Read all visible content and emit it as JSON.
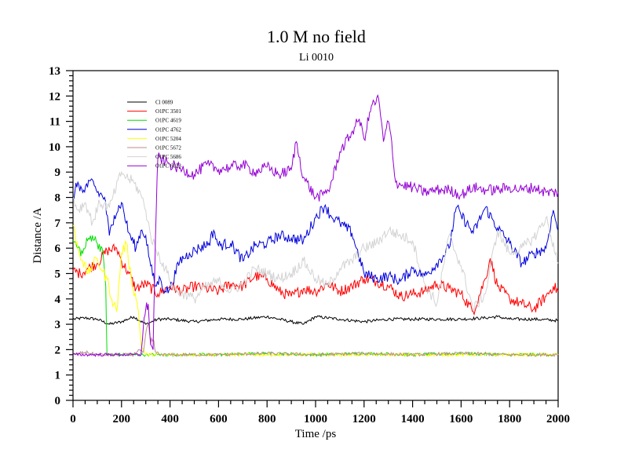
{
  "chart_data": {
    "type": "line",
    "title": "1.0 M no field",
    "subtitle": "Li 0010",
    "xlabel": "Time /ps",
    "ylabel": "Distance /A",
    "xlim": [
      0,
      2000
    ],
    "ylim": [
      0,
      13
    ],
    "xticks": [
      "0",
      "200",
      "400",
      "600",
      "800",
      "1000",
      "1200",
      "1400",
      "1600",
      "1800",
      "2000"
    ],
    "yticks": [
      "0",
      "1",
      "2",
      "3",
      "4",
      "5",
      "6",
      "7",
      "8",
      "9",
      "10",
      "11",
      "12",
      "13"
    ],
    "grid": false,
    "legend_position": "top-left",
    "series": [
      {
        "name": "Cl 0089",
        "color": "#000000",
        "x": [
          0,
          50,
          100,
          150,
          200,
          250,
          300,
          350,
          400,
          500,
          600,
          700,
          800,
          900,
          950,
          1000,
          1100,
          1200,
          1300,
          1400,
          1500,
          1600,
          1700,
          1750,
          1800,
          1900,
          2000
        ],
        "y": [
          3.2,
          3.25,
          3.2,
          3.0,
          3.1,
          3.3,
          3.0,
          3.2,
          3.2,
          3.1,
          3.2,
          3.2,
          3.3,
          3.1,
          3.0,
          3.3,
          3.2,
          3.1,
          3.2,
          3.2,
          3.2,
          3.2,
          3.25,
          3.3,
          3.2,
          3.2,
          3.15
        ]
      },
      {
        "name": "O1PC 3501",
        "color": "#ff0000",
        "x": [
          0,
          30,
          60,
          100,
          140,
          180,
          200,
          230,
          260,
          300,
          350,
          400,
          450,
          500,
          550,
          600,
          650,
          700,
          750,
          800,
          850,
          900,
          950,
          1000,
          1050,
          1100,
          1150,
          1200,
          1250,
          1300,
          1350,
          1400,
          1450,
          1500,
          1550,
          1600,
          1650,
          1700,
          1720,
          1750,
          1800,
          1850,
          1900,
          1950,
          1980,
          2000
        ],
        "y": [
          5.1,
          5.0,
          5.2,
          5.4,
          5.9,
          6.0,
          5.5,
          5.0,
          4.4,
          4.6,
          4.2,
          4.5,
          4.3,
          4.5,
          4.4,
          4.3,
          4.6,
          4.5,
          4.9,
          4.8,
          4.3,
          4.1,
          4.4,
          4.3,
          4.6,
          4.3,
          4.5,
          4.8,
          4.7,
          4.5,
          4.1,
          4.2,
          4.3,
          4.6,
          4.4,
          4.2,
          3.5,
          4.8,
          5.6,
          4.5,
          4.0,
          3.8,
          3.6,
          4.1,
          4.5,
          4.3
        ]
      },
      {
        "name": "O1PC 4619",
        "color": "#00dd00",
        "x": [
          0,
          20,
          40,
          60,
          80,
          100,
          120,
          135,
          140,
          150,
          200,
          300,
          400,
          600,
          800,
          1000,
          1200,
          1400,
          1600,
          1800,
          2000
        ],
        "y": [
          6.3,
          6.0,
          5.8,
          6.3,
          6.5,
          6.2,
          6.0,
          4.5,
          1.8,
          1.8,
          1.8,
          1.8,
          1.8,
          1.8,
          1.85,
          1.8,
          1.85,
          1.8,
          1.85,
          1.8,
          1.8
        ]
      },
      {
        "name": "O1PC 4762",
        "color": "#0000dd",
        "x": [
          0,
          20,
          40,
          60,
          80,
          100,
          130,
          150,
          170,
          200,
          230,
          260,
          280,
          300,
          320,
          340,
          360,
          380,
          400,
          440,
          480,
          520,
          560,
          580,
          600,
          650,
          700,
          750,
          800,
          850,
          900,
          950,
          1000,
          1040,
          1060,
          1100,
          1150,
          1200,
          1250,
          1300,
          1350,
          1400,
          1450,
          1500,
          1550,
          1580,
          1600,
          1650,
          1700,
          1750,
          1800,
          1850,
          1900,
          1950,
          1980,
          2000
        ],
        "y": [
          8.0,
          8.6,
          8.2,
          8.4,
          8.7,
          8.2,
          8.0,
          6.5,
          7.3,
          7.8,
          6.6,
          6.0,
          6.7,
          6.5,
          5.3,
          4.5,
          4.8,
          4.3,
          4.4,
          5.5,
          5.8,
          6.0,
          6.2,
          6.7,
          6.1,
          6.2,
          5.5,
          6.1,
          6.2,
          6.5,
          6.4,
          6.3,
          7.2,
          7.7,
          7.3,
          7.0,
          6.6,
          5.0,
          4.8,
          4.9,
          4.7,
          5.2,
          4.9,
          5.4,
          6.0,
          7.6,
          7.3,
          6.6,
          7.6,
          6.8,
          6.2,
          5.4,
          5.8,
          6.0,
          7.5,
          6.7
        ]
      },
      {
        "name": "O1PC 5204",
        "color": "#ffff00",
        "x": [
          0,
          20,
          40,
          60,
          80,
          100,
          120,
          140,
          160,
          180,
          200,
          220,
          240,
          260,
          270,
          280,
          300,
          400,
          600,
          800,
          1000,
          1200,
          1400,
          1600,
          1800,
          2000
        ],
        "y": [
          6.9,
          6.0,
          5.5,
          5.0,
          5.3,
          5.6,
          5.1,
          4.8,
          4.0,
          3.5,
          5.8,
          6.2,
          4.8,
          4.0,
          3.5,
          2.2,
          1.8,
          1.8,
          1.8,
          1.8,
          1.8,
          1.8,
          1.8,
          1.8,
          1.8,
          1.8
        ]
      },
      {
        "name": "O1PC 5672",
        "color": "#bc8f8f",
        "x": [
          0,
          50,
          100,
          150,
          200,
          250,
          270,
          290,
          310,
          320,
          330,
          340,
          360,
          400,
          600,
          800,
          1000,
          1200,
          1400,
          1600,
          1800,
          2000
        ],
        "y": [
          1.8,
          1.9,
          1.8,
          1.8,
          1.8,
          1.8,
          2.0,
          1.9,
          3.0,
          2.2,
          2.4,
          1.9,
          1.8,
          1.8,
          1.8,
          1.85,
          1.8,
          1.85,
          1.8,
          1.85,
          1.8,
          1.8
        ]
      },
      {
        "name": "O1PC 5686",
        "color": "#d3d3d3",
        "x": [
          0,
          20,
          50,
          80,
          110,
          150,
          200,
          220,
          250,
          280,
          300,
          320,
          340,
          380,
          420,
          460,
          500,
          550,
          600,
          650,
          700,
          750,
          800,
          850,
          900,
          950,
          1000,
          1050,
          1100,
          1150,
          1200,
          1250,
          1300,
          1350,
          1400,
          1450,
          1500,
          1550,
          1600,
          1650,
          1700,
          1750,
          1800,
          1850,
          1900,
          1950,
          2000
        ],
        "y": [
          8.0,
          7.5,
          7.8,
          7.0,
          7.8,
          7.6,
          9.0,
          8.8,
          8.6,
          8.1,
          7.5,
          6.5,
          6.0,
          5.2,
          4.3,
          4.2,
          4.0,
          4.5,
          4.7,
          4.3,
          4.6,
          5.2,
          5.0,
          4.8,
          5.0,
          5.5,
          4.8,
          4.5,
          5.2,
          5.5,
          6.0,
          6.2,
          6.7,
          6.5,
          6.3,
          4.6,
          3.8,
          6.5,
          5.3,
          3.6,
          4.2,
          6.7,
          5.8,
          6.0,
          6.4,
          7.2,
          5.4
        ]
      },
      {
        "name": "O1PC 6023",
        "color": "#9400d3",
        "x": [
          0,
          100,
          200,
          250,
          280,
          290,
          300,
          310,
          320,
          330,
          340,
          350,
          380,
          400,
          450,
          500,
          550,
          600,
          650,
          700,
          750,
          800,
          850,
          900,
          920,
          950,
          1000,
          1030,
          1060,
          1100,
          1140,
          1180,
          1200,
          1230,
          1260,
          1280,
          1300,
          1310,
          1330,
          1350,
          1400,
          1450,
          1500,
          1550,
          1600,
          1650,
          1700,
          1750,
          1800,
          1850,
          1900,
          1950,
          2000
        ],
        "y": [
          1.8,
          1.8,
          1.8,
          1.8,
          1.8,
          2.9,
          3.6,
          3.8,
          2.2,
          2.0,
          6.5,
          9.6,
          9.4,
          9.3,
          9.1,
          8.9,
          9.3,
          9.1,
          9.2,
          9.3,
          9.0,
          9.2,
          8.9,
          9.1,
          10.2,
          8.8,
          8.0,
          8.1,
          8.4,
          9.8,
          10.4,
          11.1,
          10.3,
          11.6,
          11.9,
          10.2,
          11.0,
          10.5,
          8.6,
          8.5,
          8.4,
          8.2,
          8.3,
          8.3,
          8.1,
          8.4,
          8.3,
          8.3,
          8.4,
          8.3,
          8.4,
          8.2,
          8.2
        ]
      }
    ]
  }
}
